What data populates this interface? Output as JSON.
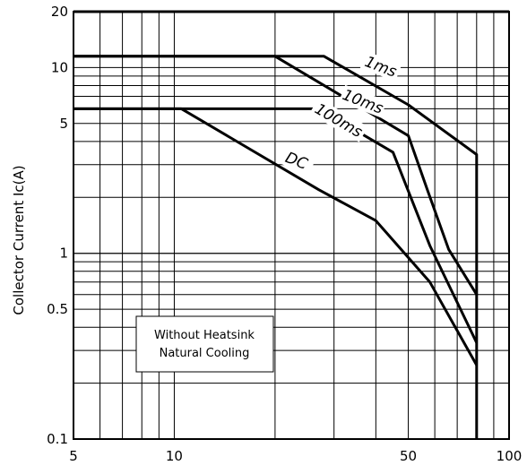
{
  "chart_data": {
    "type": "line",
    "title": "",
    "xlabel": "",
    "ylabel": "Collector Current Ic(A)",
    "x_scale": "log",
    "y_scale": "log",
    "xlim": [
      5,
      100
    ],
    "ylim": [
      0.1,
      20
    ],
    "grid": true,
    "x_tick_labels": [
      "5",
      "10",
      "50",
      "100"
    ],
    "x_tick_values": [
      5,
      10,
      50,
      100
    ],
    "y_tick_labels": [
      "0.1",
      "0.5",
      "1",
      "5",
      "10",
      "20"
    ],
    "y_tick_values": [
      0.1,
      0.5,
      1,
      5,
      10,
      20
    ],
    "series": [
      {
        "name": "1ms",
        "points": [
          [
            5,
            11.5
          ],
          [
            28,
            11.5
          ],
          [
            50,
            6.3
          ],
          [
            80,
            3.4
          ],
          [
            80,
            0.1
          ]
        ]
      },
      {
        "name": "10ms",
        "points": [
          [
            5,
            11.5
          ],
          [
            20,
            11.5
          ],
          [
            50,
            4.3
          ],
          [
            57,
            2.2
          ],
          [
            66,
            1.05
          ],
          [
            80,
            0.6
          ]
        ]
      },
      {
        "name": "100ms",
        "points": [
          [
            5,
            6.0
          ],
          [
            27,
            6.0
          ],
          [
            45,
            3.5
          ],
          [
            58,
            1.1
          ],
          [
            80,
            0.33
          ]
        ]
      },
      {
        "name": "DC",
        "points": [
          [
            5,
            6.0
          ],
          [
            10.5,
            6.0
          ],
          [
            27,
            2.2
          ],
          [
            40,
            1.5
          ],
          [
            58,
            0.7
          ],
          [
            80,
            0.25
          ]
        ]
      }
    ],
    "annotations": [
      "Without Heatsink",
      "Natural Cooling"
    ]
  }
}
